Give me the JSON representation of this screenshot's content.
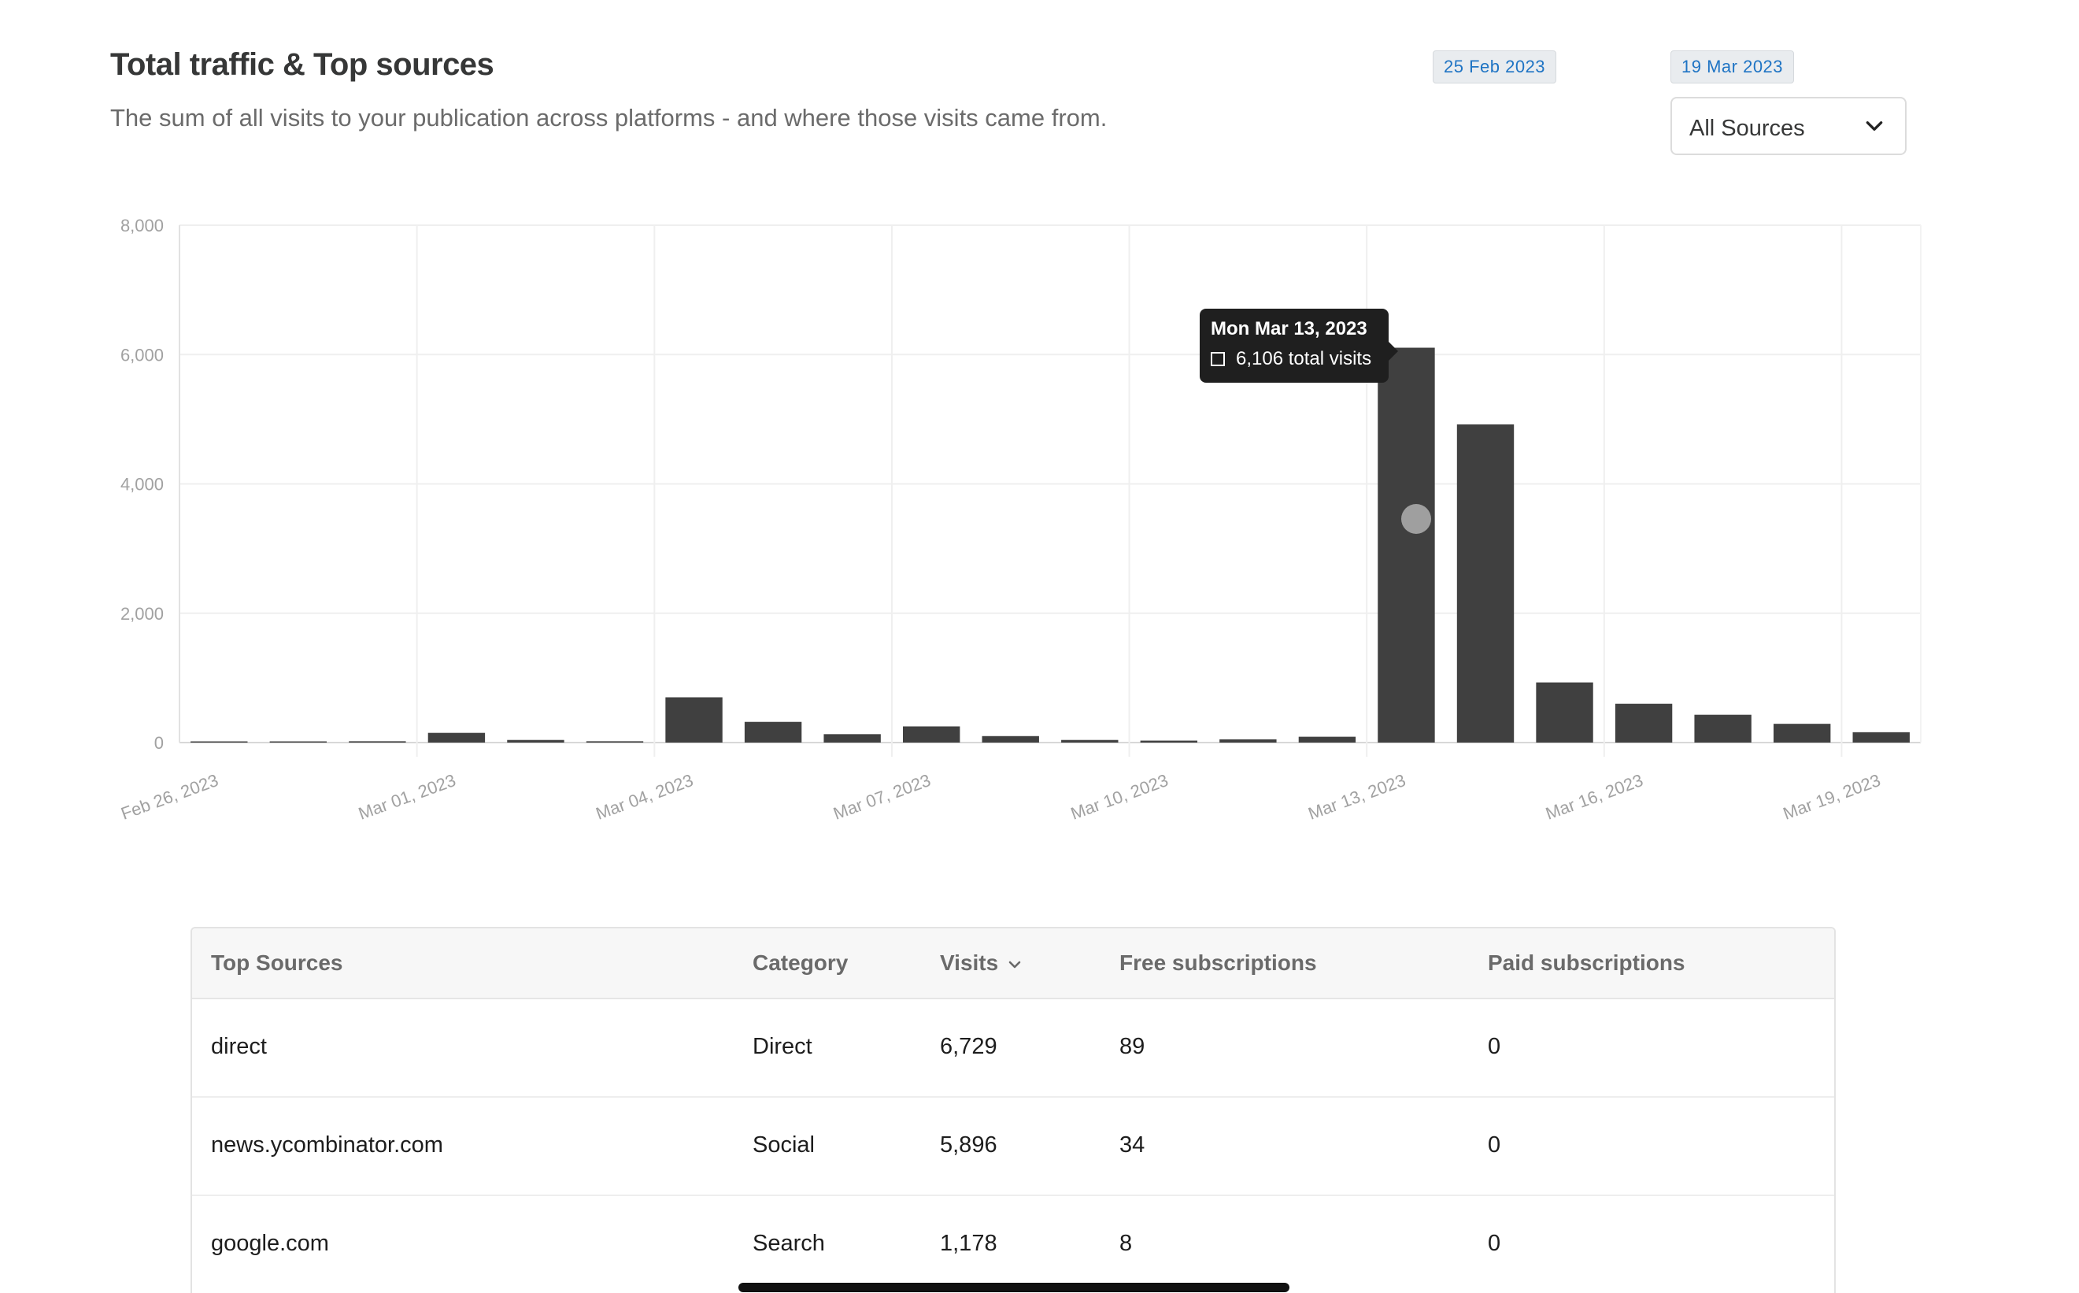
{
  "header": {
    "title": "Total traffic & Top sources",
    "subtitle": "The sum of all visits to your publication across platforms - and where those visits came from."
  },
  "date_range": {
    "start": "25 Feb 2023",
    "end": "19 Mar 2023"
  },
  "source_filter": {
    "selected": "All Sources",
    "icon": "chevron-down-icon"
  },
  "chart_data": {
    "type": "bar",
    "title": "",
    "xlabel": "",
    "ylabel": "",
    "ylim": [
      0,
      8000
    ],
    "yticks": [
      0,
      2000,
      4000,
      6000,
      8000
    ],
    "ytick_labels": [
      "0",
      "2,000",
      "4,000",
      "6,000",
      "8,000"
    ],
    "grid": true,
    "bar_color": "#404040",
    "categories": [
      "2023-02-26",
      "2023-02-27",
      "2023-02-28",
      "2023-03-01",
      "2023-03-02",
      "2023-03-03",
      "2023-03-04",
      "2023-03-05",
      "2023-03-06",
      "2023-03-07",
      "2023-03-08",
      "2023-03-09",
      "2023-03-10",
      "2023-03-11",
      "2023-03-12",
      "2023-03-13",
      "2023-03-14",
      "2023-03-15",
      "2023-03-16",
      "2023-03-17",
      "2023-03-18",
      "2023-03-19"
    ],
    "values": [
      10,
      10,
      20,
      150,
      40,
      20,
      700,
      320,
      130,
      250,
      100,
      40,
      30,
      50,
      90,
      6106,
      4920,
      930,
      600,
      430,
      290,
      160
    ],
    "xtick_labels": [
      {
        "category": "2023-02-26",
        "label": "Feb 26, 2023"
      },
      {
        "category": "2023-03-01",
        "label": "Mar 01, 2023"
      },
      {
        "category": "2023-03-04",
        "label": "Mar 04, 2023"
      },
      {
        "category": "2023-03-07",
        "label": "Mar 07, 2023"
      },
      {
        "category": "2023-03-10",
        "label": "Mar 10, 2023"
      },
      {
        "category": "2023-03-13",
        "label": "Mar 13, 2023"
      },
      {
        "category": "2023-03-16",
        "label": "Mar 16, 2023"
      },
      {
        "category": "2023-03-19",
        "label": "Mar 19, 2023"
      }
    ],
    "tooltip": {
      "category": "2023-03-13",
      "date": "Mon Mar 13, 2023",
      "value_label": "6,106 total visits"
    }
  },
  "table": {
    "columns": [
      "Top Sources",
      "Category",
      "Visits",
      "Free subscriptions",
      "Paid subscriptions"
    ],
    "sort_icon": "chevron-down-icon",
    "rows": [
      {
        "source": "direct",
        "category": "Direct",
        "visits": "6,729",
        "free": "89",
        "paid": "0"
      },
      {
        "source": "news.ycombinator.com",
        "category": "Social",
        "visits": "5,896",
        "free": "34",
        "paid": "0"
      },
      {
        "source": "google.com",
        "category": "Search",
        "visits": "1,178",
        "free": "8",
        "paid": "0"
      }
    ]
  }
}
